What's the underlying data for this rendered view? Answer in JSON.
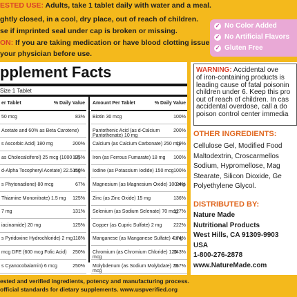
{
  "directions": {
    "suggested_use_label": "ESTED USE:",
    "suggested_use_text": "Adults, take 1 tablet daily with water and a meal.",
    "lines": [
      "ghtly closed, in a cool, dry place, out of reach of children.",
      "se if imprinted seal under cap is broken or missing."
    ],
    "caution_label": "ON:",
    "caution_text": "If you are taking medication or have blood clotting issues,",
    "caution_line2": "your physician before use."
  },
  "badges": [
    "No Color Added",
    "No Artificial Flavors",
    "Gluten Free"
  ],
  "supplement_facts": {
    "title": "pplement Facts",
    "serving_size": "Size 1 Tablet",
    "left_table": {
      "headers": [
        "er Tablet",
        "% Daily Value"
      ],
      "rows": [
        [
          "50 mcg",
          "83%"
        ],
        [
          "Acetate and 60% as Beta Carotene)"
        ],
        [
          "s Ascorbic Acid) 180 mg",
          "200%"
        ],
        [
          "as Cholecalciferol) 25 mcg (1000 IU)",
          "125%"
        ],
        [
          "d-Alpha Tocopheryl Acetate) 22.5 mg",
          "150%"
        ],
        [
          "s Phytonadione) 80 mcg",
          "67%"
        ],
        [
          "Thiamine Mononitrate) 1.5 mg",
          "125%"
        ],
        [
          "7 mg",
          "131%"
        ],
        [
          "iacinamide) 20 mg",
          "125%"
        ],
        [
          "s Pyridoxine Hydrochloride) 2 mg",
          "118%"
        ],
        [
          "mcg DFE (600 mcg Folic Acid)",
          "250%"
        ],
        [
          "s Cyanocobalamin) 6 mcg",
          "250%"
        ]
      ]
    },
    "right_table": {
      "headers": [
        "Amount Per Tablet",
        "% Daily Value"
      ],
      "rows": [
        [
          "Biotin 30 mcg",
          "100%"
        ],
        [
          "Pantothenic Acid (as d-Calcium Pantothenate) 10 mg",
          "200%"
        ],
        [
          "Calcium (as Calcium Carbonate) 250 mg",
          "19%"
        ],
        [
          "Iron (as Ferrous Fumarate) 18 mg",
          "100%"
        ],
        [
          "Iodine (as Potassium Iodide) 150 mcg",
          "100%"
        ],
        [
          "Magnesium (as Magnesium Oxide) 100 mg",
          "24%"
        ],
        [
          "Zinc (as Zinc Oxide) 15 mg",
          "136%"
        ],
        [
          "Selenium (as Sodium Selenate) 70 mcg",
          "127%"
        ],
        [
          "Copper (as Cupric Sulfate) 2 mg",
          "222%"
        ],
        [
          "Manganese (as Manganese Sulfate) 4 mg",
          "174%"
        ],
        [
          "Chromium (as Chromium Chloride) 120 mcg",
          "343%"
        ],
        [
          "Molybdenum (as Sodium Molybdate) 75 mcg",
          "167%"
        ]
      ]
    }
  },
  "warning": {
    "label": "WARNING:",
    "first": "Accidental ove",
    "lines": [
      "of iron-containing products is",
      "leading cause of fatal poisonin",
      "children under 6. Keep this pro",
      "out of reach of children. In cas",
      "accidental overdose, call a do",
      "poison control center immedia"
    ]
  },
  "other_ingredients": {
    "heading": "OTHER INGREDIENTS:",
    "lines": [
      "Cellulose Gel, Modified Food",
      "Maltodextrin, Croscarmellos",
      "Sodium, Hypromellose, Mag",
      "Stearate, Silicon Dioxide, Ge",
      "Polyethylene Glycol."
    ]
  },
  "distributor": {
    "heading": "DISTRIBUTED BY:",
    "lines": [
      "Nature Made",
      "Nutritional Products",
      "West Hills, CA 91309-9903",
      "USA",
      "1-800-276-2878",
      "www.NatureMade.com"
    ]
  },
  "footer": {
    "lines": [
      "ested and verified ingredients, potency and manufacturing process.",
      "official standards for dietary supplements. www.uspverified.org"
    ]
  }
}
